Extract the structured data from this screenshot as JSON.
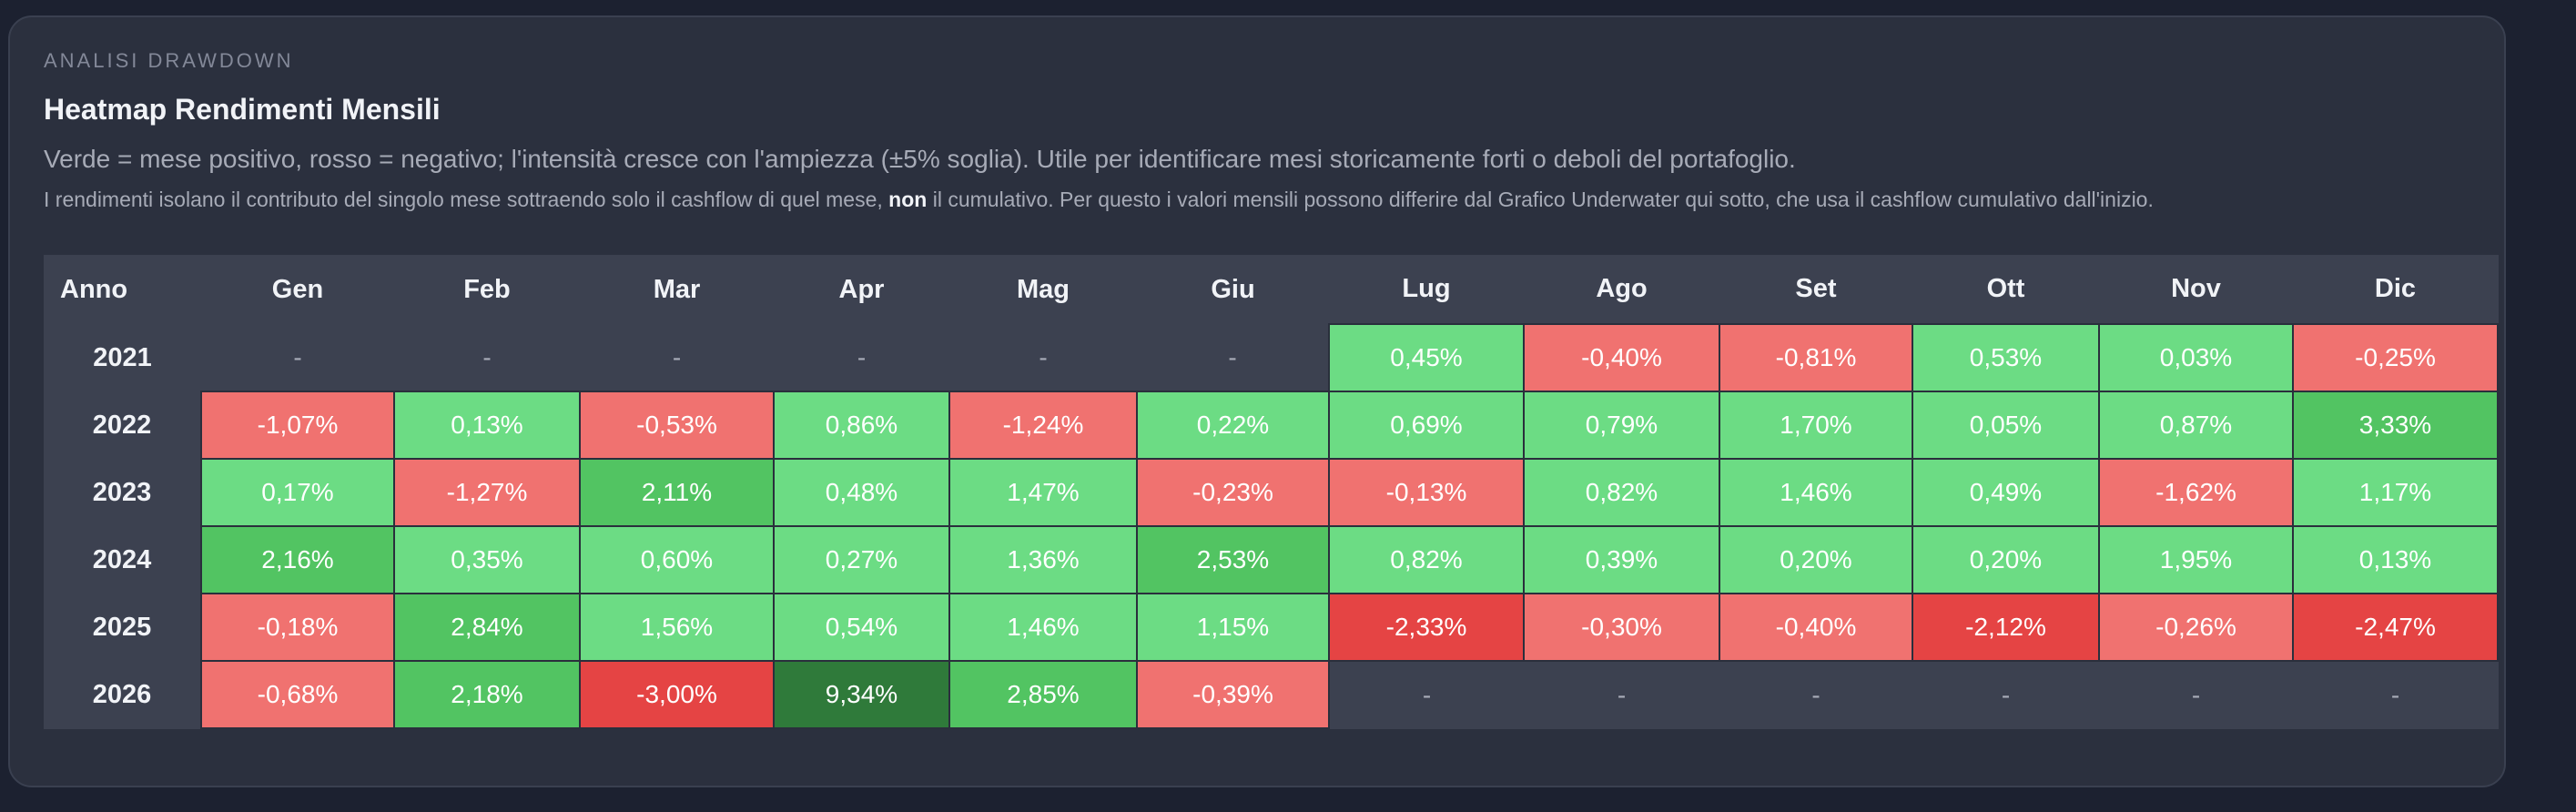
{
  "section_label": "ANALISI DRAWDOWN",
  "title": "Heatmap Rendimenti Mensili",
  "description": "Verde = mese positivo, rosso = negativo; l'intensità cresce con l'ampiezza (±5% soglia). Utile per identificare mesi storicamente forti o deboli del portafoglio.",
  "note_before": "I rendimenti isolano il contributo del singolo mese sottraendo solo il cashflow di quel mese,",
  "note_bold": "non",
  "note_after": "il cumulativo. Per questo i valori mensili possono differire dal Grafico Underwater qui sotto, che usa il cashflow cumulativo dall'inizio.",
  "colors": {
    "positive_light": "#6cdc84",
    "positive_mid": "#52c462",
    "positive_dark": "#2f7a3a",
    "negative_light": "#f07270",
    "negative_dark": "#e54444",
    "empty": "#3c4150"
  },
  "chart_data": {
    "type": "heatmap",
    "title": "Heatmap Rendimenti Mensili",
    "row_header": "Anno",
    "columns": [
      "Gen",
      "Feb",
      "Mar",
      "Apr",
      "Mag",
      "Giu",
      "Lug",
      "Ago",
      "Set",
      "Ott",
      "Nov",
      "Dic"
    ],
    "empty_label": "-",
    "rows": [
      {
        "year": "2021",
        "values": [
          null,
          null,
          null,
          null,
          null,
          null,
          0.45,
          -0.4,
          -0.81,
          0.53,
          0.03,
          -0.25
        ]
      },
      {
        "year": "2022",
        "values": [
          -1.07,
          0.13,
          -0.53,
          0.86,
          -1.24,
          0.22,
          0.69,
          0.79,
          1.7,
          0.05,
          0.87,
          3.33
        ]
      },
      {
        "year": "2023",
        "values": [
          0.17,
          -1.27,
          2.11,
          0.48,
          1.47,
          -0.23,
          -0.13,
          0.82,
          1.46,
          0.49,
          -1.62,
          1.17
        ]
      },
      {
        "year": "2024",
        "values": [
          2.16,
          0.35,
          0.6,
          0.27,
          1.36,
          2.53,
          0.82,
          0.39,
          0.2,
          0.2,
          1.95,
          0.13
        ]
      },
      {
        "year": "2025",
        "values": [
          -0.18,
          2.84,
          1.56,
          0.54,
          1.46,
          1.15,
          -2.33,
          -0.3,
          -0.4,
          -2.12,
          -0.26,
          -2.47
        ]
      },
      {
        "year": "2026",
        "values": [
          -0.68,
          2.18,
          -3.0,
          9.34,
          2.85,
          -0.39,
          null,
          null,
          null,
          null,
          null,
          null
        ]
      }
    ],
    "unit": "%",
    "threshold": 5
  }
}
